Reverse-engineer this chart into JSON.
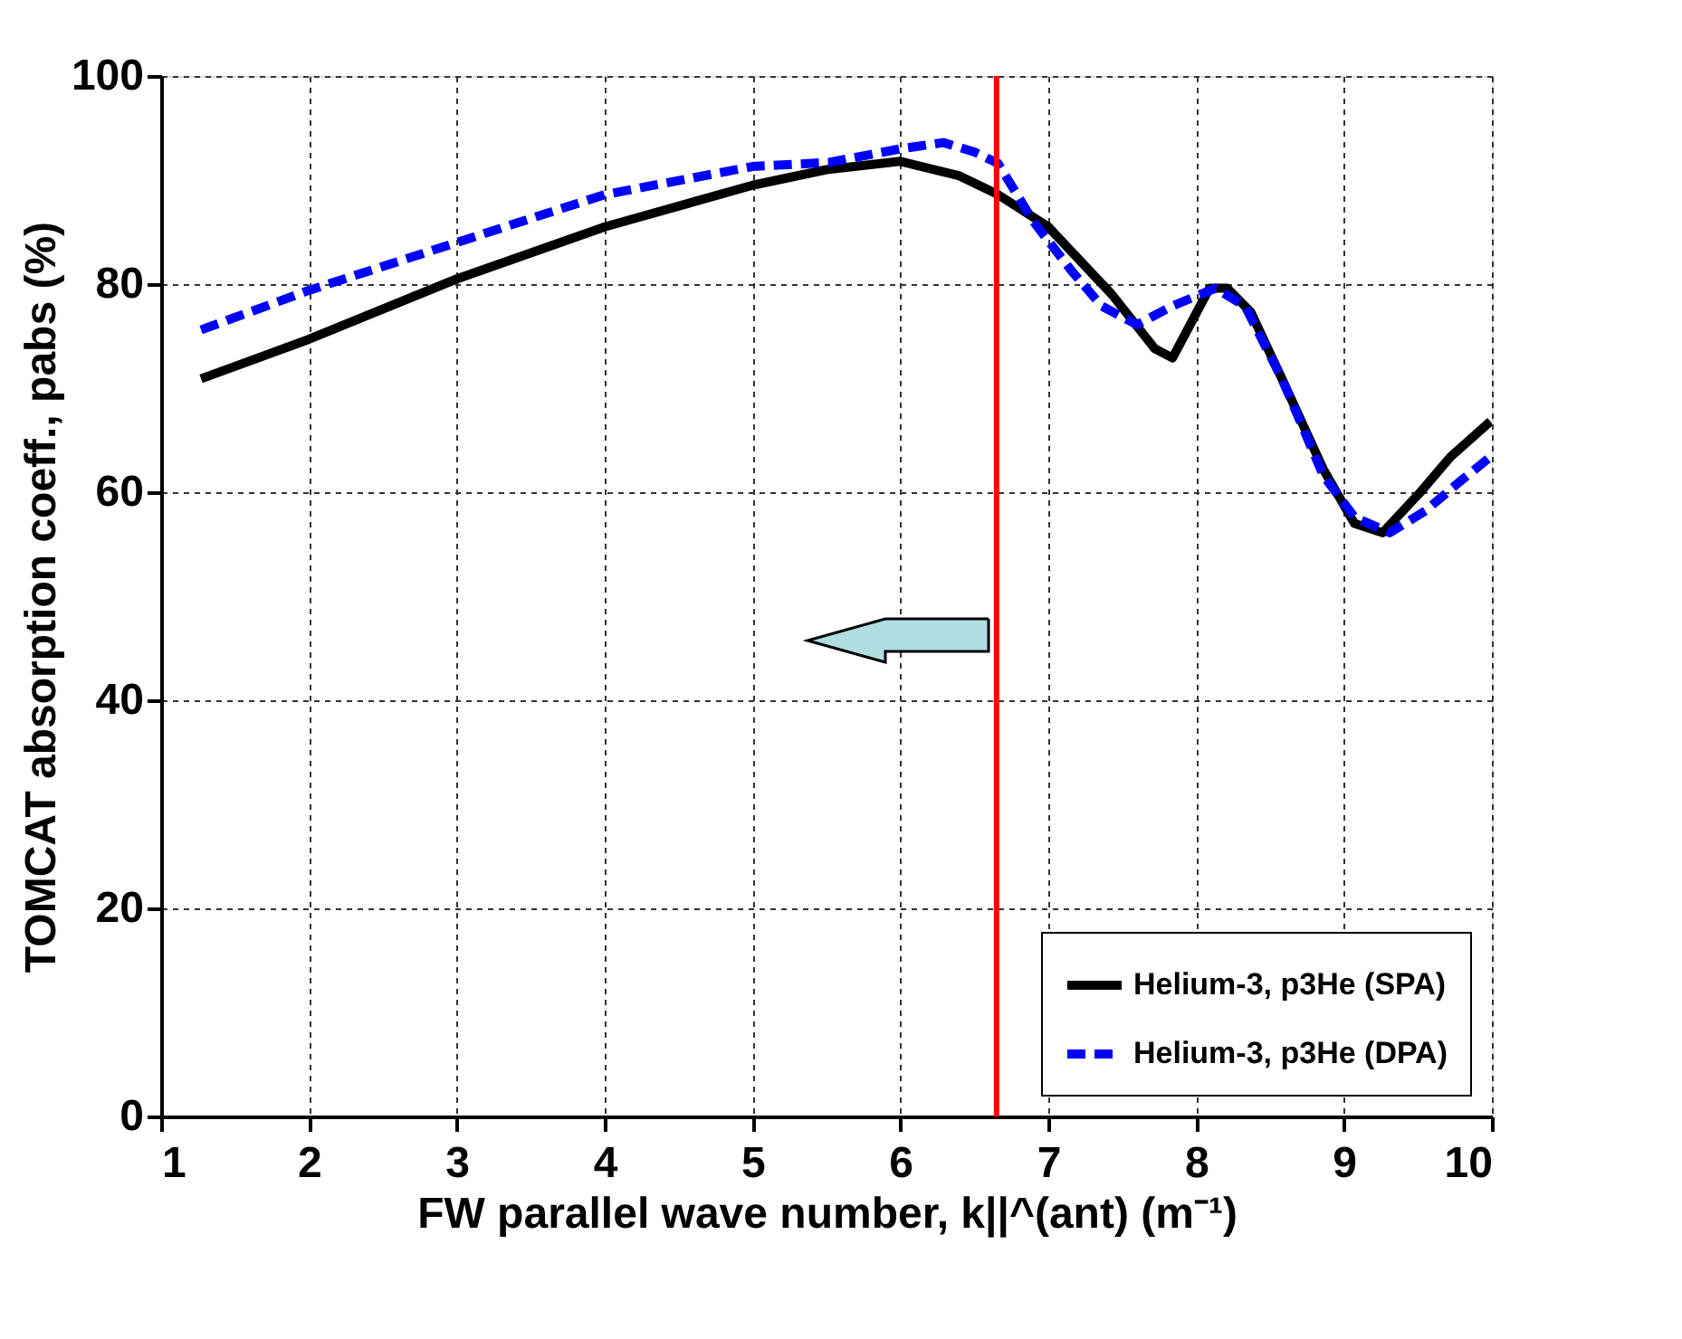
{
  "chart_data": {
    "type": "line",
    "xlabel": "FW parallel wave number, k||^(ant) (m⁻¹)",
    "ylabel": "TOMCAT absorption coeff., pabs (%)",
    "xlim": [
      1,
      10
    ],
    "xticks": [
      1,
      2,
      3,
      4,
      5,
      6,
      7,
      8,
      9,
      10
    ],
    "ylim": [
      0,
      100
    ],
    "yticks": [
      0,
      20,
      40,
      60,
      80,
      100
    ],
    "grid": true,
    "legend": "bottom right",
    "marker": "none",
    "ref_lines": [
      {
        "axis": "x",
        "value": 6.65,
        "color": "#ff0000"
      }
    ],
    "series": [
      {
        "name": "Helium-3, p3He (SPA)",
        "color": "#000000",
        "line_style": "solid",
        "x": [
          1.27,
          2,
          3,
          4,
          5,
          5.5,
          6,
          6.4,
          6.66,
          7,
          7.43,
          7.72,
          7.84,
          8.09,
          8.21,
          8.37,
          8.58,
          8.86,
          9.07,
          9.26,
          9.51,
          9.72,
          9.99
        ],
        "values": [
          70.9,
          74.7,
          80.5,
          85.5,
          89.5,
          91,
          91.8,
          90.4,
          88.6,
          85.5,
          79,
          73.8,
          72.9,
          79.6,
          79.6,
          77.3,
          70.9,
          62.2,
          57,
          56.1,
          59.9,
          63.4,
          66.8
        ]
      },
      {
        "name": "Helium-3, p3He (DPA)",
        "color": "#0000ff",
        "line_style": "dashed",
        "x": [
          1.27,
          2,
          3,
          4,
          5,
          5.52,
          6,
          6.29,
          6.5,
          6.66,
          6.9,
          7.15,
          7.36,
          7.6,
          7.84,
          8.13,
          8.33,
          8.58,
          8.86,
          9.07,
          9.31,
          9.55,
          9.79,
          9.99
        ],
        "values": [
          75.6,
          79.4,
          84,
          88.6,
          91.3,
          91.7,
          93,
          93.6,
          92.7,
          91.6,
          86,
          81.4,
          77.9,
          76.1,
          77.9,
          79.6,
          77.9,
          70.9,
          61.6,
          57.6,
          56.1,
          58.2,
          61.1,
          63.4
        ]
      }
    ]
  }
}
